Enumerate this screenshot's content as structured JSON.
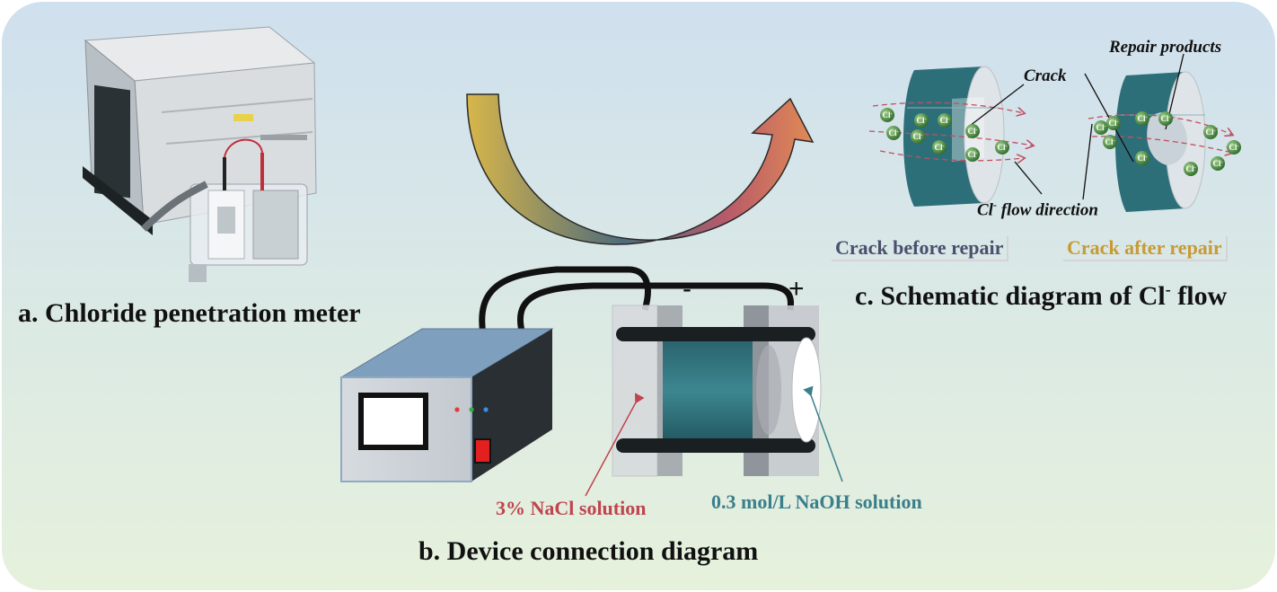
{
  "panels": {
    "a": {
      "caption": "a. Chloride penetration meter"
    },
    "b": {
      "caption": "b. Device connection diagram",
      "negative_sign": "-",
      "positive_sign": "+",
      "nacl_label": "3% NaCl solution",
      "naoh_label": "0.3 mol/L NaOH solution"
    },
    "c": {
      "caption_main": "c. Schematic diagram of Cl",
      "caption_sup": "-",
      "caption_end": " flow",
      "crack_label": "Crack",
      "repair_products_label": "Repair products",
      "flow_label_main": "Cl",
      "flow_label_sup": "-",
      "flow_label_end": " flow direction",
      "before_label": "Crack before repair",
      "after_label": "Crack after repair",
      "ion_label": "Cl",
      "ion_label_sup": "-"
    }
  },
  "colors": {
    "background_top": "#cfe0ee",
    "background_bottom": "#e4f0dc",
    "specimen_teal": "#2d6f79",
    "nacl_red": "#c0444e",
    "naoh_teal": "#3a7f8c",
    "before_tag": "#4a4f6e",
    "after_tag": "#c89a35"
  }
}
